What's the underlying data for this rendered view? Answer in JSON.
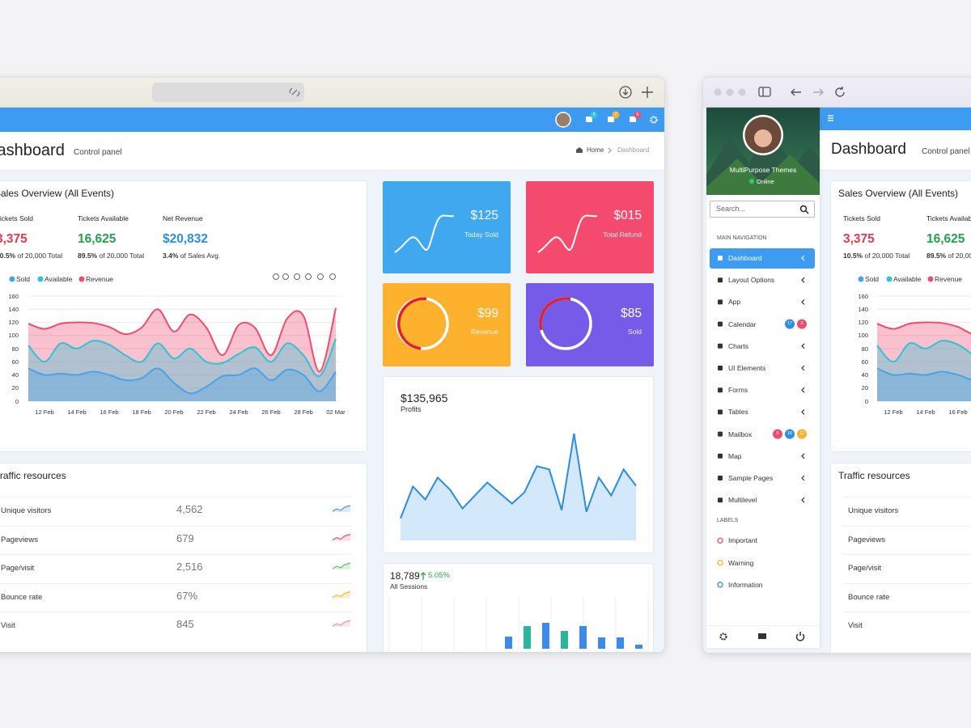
{
  "left_window": {
    "badges": [
      "5",
      "7",
      "6"
    ],
    "header": {
      "title": "Dashboard",
      "subtitle": "Control panel",
      "breadcrumb": [
        "Home",
        "Dashboard"
      ]
    },
    "stat_cards": [
      {
        "value": "$125",
        "label": "Today Sold"
      },
      {
        "value": "$015",
        "label": "Total Refund"
      },
      {
        "value": "$99",
        "label": "Revenue"
      },
      {
        "value": "$85",
        "label": "Sold"
      }
    ]
  },
  "sales_overview": {
    "title": "Sales Overview (All Events)",
    "stats": [
      {
        "label": "Tickets Sold",
        "value": "3,375",
        "percent": "10.5%",
        "note": "of 20,000 Total"
      },
      {
        "label": "Tickets Available",
        "value": "16,625",
        "percent": "89.5%",
        "note": "of 20,000 Total"
      },
      {
        "label": "Net Revenue",
        "value": "$20,832",
        "percent": "3.4%",
        "note": "of Sales Avg."
      }
    ]
  },
  "traffic": {
    "title": "Traffic resources",
    "rows": [
      [
        "Unique visitors",
        "4,562"
      ],
      [
        "Pageviews",
        "679"
      ],
      [
        "Page/visit",
        "2,516"
      ],
      [
        "Bounce rate",
        "67%"
      ],
      [
        "Visit",
        "845"
      ]
    ]
  },
  "sidebar": {
    "user": "MultiPurpose Themes",
    "status": "Online",
    "search_placeholder": "Search...",
    "sections": [
      {
        "title": "MAIN NAVIGATION",
        "items": [
          {
            "label": "Dashboard"
          },
          {
            "label": "Layout Options"
          },
          {
            "label": "App"
          },
          {
            "label": "Calendar",
            "badges": [
              "17",
              "3"
            ]
          },
          {
            "label": "Charts"
          },
          {
            "label": "UI Elements"
          },
          {
            "label": "Forms"
          },
          {
            "label": "Tables"
          },
          {
            "label": "Mailbox",
            "badges": [
              "6",
              "16",
              "12"
            ]
          },
          {
            "label": "Map"
          },
          {
            "label": "Sample Pages"
          },
          {
            "label": "Multilevel"
          }
        ]
      },
      {
        "title": "LABELS",
        "items": [
          {
            "label": "Important"
          },
          {
            "label": "Warning"
          },
          {
            "label": "Information"
          }
        ]
      }
    ]
  },
  "chart_data": [
    {
      "type": "area",
      "categories": [
        null,
        "12 Feb",
        null,
        "14 Feb",
        null,
        "16 Feb",
        null,
        "18 Feb",
        null,
        "20 Feb",
        null,
        "22 Feb",
        null,
        "24 Feb",
        null,
        "26 Feb",
        null,
        "28 Feb",
        null,
        "02 Mar"
      ],
      "series": [
        {
          "name": "Sold",
          "color": "#49a3e6",
          "values": [
            50,
            40,
            42,
            40,
            45,
            40,
            32,
            35,
            50,
            28,
            12,
            22,
            38,
            40,
            50,
            32,
            48,
            40,
            15,
            45
          ]
        },
        {
          "name": "Available",
          "color": "#2cc4d6",
          "values": [
            85,
            60,
            88,
            80,
            92,
            86,
            70,
            60,
            88,
            65,
            80,
            60,
            58,
            72,
            82,
            60,
            88,
            70,
            38,
            95
          ]
        },
        {
          "name": "Revenue",
          "color": "#ef4d6f",
          "values": [
            118,
            110,
            118,
            120,
            119,
            113,
            102,
            112,
            140,
            106,
            132,
            112,
            70,
            116,
            112,
            70,
            126,
            130,
            45,
            142
          ]
        }
      ],
      "ylim": [
        0,
        160
      ],
      "yticks": [
        0,
        20,
        40,
        60,
        80,
        100,
        120,
        140,
        160
      ],
      "grid": true
    },
    {
      "type": "area",
      "title": "$135,965",
      "subtitle": "Profits",
      "color": "#2a8de0",
      "values": [
        27,
        66,
        50,
        77,
        62,
        39,
        55,
        71,
        58,
        45,
        59,
        91,
        87,
        37,
        131,
        35,
        77,
        55,
        87,
        67
      ]
    },
    {
      "type": "bar",
      "title": "18,789",
      "change": "5.05%",
      "subtitle": "All Sessions",
      "values": [
        15,
        28,
        32,
        22,
        28,
        14,
        14,
        5
      ],
      "colors": [
        "#3d8be8",
        "#2bb59a",
        "#3d8be8",
        "#2bb59a",
        "#3d8be8",
        "#3d8be8",
        "#3d8be8",
        "#3d8be8"
      ]
    }
  ]
}
